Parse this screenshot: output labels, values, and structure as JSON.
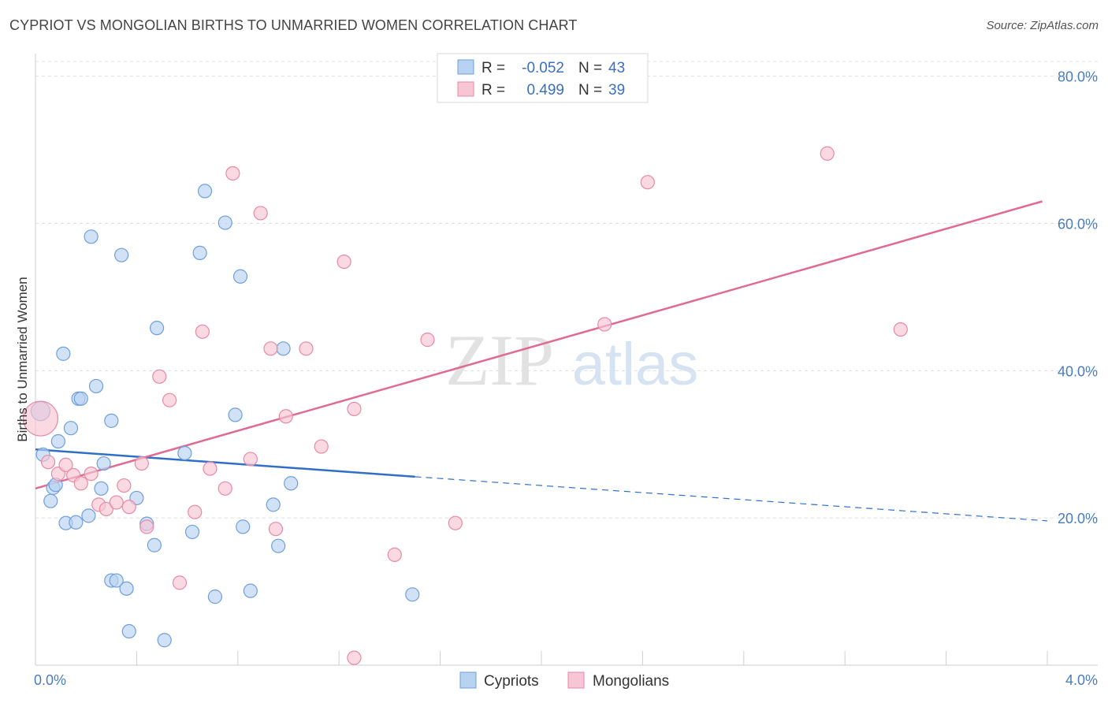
{
  "header": {
    "title": "CYPRIOT VS MONGOLIAN BIRTHS TO UNMARRIED WOMEN CORRELATION CHART",
    "source": "Source: ZipAtlas.com"
  },
  "watermark": {
    "zip": "ZIP",
    "atlas": "atlas"
  },
  "colors": {
    "cypriots_fill": "#b8d2f2",
    "cypriots_stroke": "#6f9fda",
    "cypriots_line": "#2f6fc8",
    "mongolians_fill": "#f7c5d4",
    "mongolians_stroke": "#e68aa6",
    "mongolians_line": "#e06a94"
  },
  "legend": {
    "rows": [
      {
        "r_label": "R =",
        "r_value": "-0.052",
        "n_label": "N =",
        "n_value": "43"
      },
      {
        "r_label": "R =",
        "r_value": "0.499",
        "n_label": "N =",
        "n_value": "39"
      }
    ]
  },
  "chart_data": {
    "type": "scatter",
    "title": "CYPRIOT VS MONGOLIAN BIRTHS TO UNMARRIED WOMEN CORRELATION CHART",
    "xlabel": "",
    "ylabel": "Births to Unmarried Women",
    "xlim": [
      0,
      4.0
    ],
    "ylim": [
      0,
      82
    ],
    "x_tick_labels": [
      "0.0%",
      "4.0%"
    ],
    "y_ticks": [
      20,
      40,
      60,
      80
    ],
    "y_tick_labels": [
      "20.0%",
      "40.0%",
      "60.0%",
      "80.0%"
    ],
    "grid": true,
    "legend_position": "top-center",
    "series": [
      {
        "name": "Cypriots",
        "r": -0.052,
        "n": 43,
        "trend": {
          "x": [
            0.0,
            1.5
          ],
          "y": [
            29.3,
            25.6
          ],
          "dashed_x": [
            1.5,
            4.0
          ],
          "dashed_y": [
            25.6,
            19.6
          ]
        },
        "points": [
          [
            0.02,
            34.5
          ],
          [
            0.03,
            28.6
          ],
          [
            0.07,
            24.1
          ],
          [
            0.08,
            24.5
          ],
          [
            0.06,
            22.3
          ],
          [
            0.09,
            30.4
          ],
          [
            0.11,
            42.3
          ],
          [
            0.14,
            32.2
          ],
          [
            0.17,
            36.2
          ],
          [
            0.18,
            36.2
          ],
          [
            0.22,
            58.2
          ],
          [
            0.24,
            37.9
          ],
          [
            0.26,
            24.0
          ],
          [
            0.27,
            27.4
          ],
          [
            0.3,
            33.2
          ],
          [
            0.34,
            55.7
          ],
          [
            0.12,
            19.3
          ],
          [
            0.16,
            19.4
          ],
          [
            0.21,
            20.3
          ],
          [
            0.3,
            11.5
          ],
          [
            0.32,
            11.5
          ],
          [
            0.36,
            10.4
          ],
          [
            0.37,
            4.6
          ],
          [
            0.4,
            22.7
          ],
          [
            0.44,
            19.2
          ],
          [
            0.47,
            16.3
          ],
          [
            0.48,
            45.8
          ],
          [
            0.51,
            3.4
          ],
          [
            0.59,
            28.8
          ],
          [
            0.62,
            18.1
          ],
          [
            0.65,
            56.0
          ],
          [
            0.67,
            64.4
          ],
          [
            0.71,
            9.3
          ],
          [
            0.75,
            60.1
          ],
          [
            0.79,
            34.0
          ],
          [
            0.81,
            52.8
          ],
          [
            0.82,
            18.8
          ],
          [
            0.85,
            10.1
          ],
          [
            0.94,
            21.8
          ],
          [
            0.96,
            16.2
          ],
          [
            0.98,
            43.0
          ],
          [
            1.01,
            24.7
          ],
          [
            1.49,
            9.6
          ]
        ]
      },
      {
        "name": "Mongolians",
        "r": 0.499,
        "n": 39,
        "trend": {
          "x": [
            0.0,
            3.98
          ],
          "y": [
            24.0,
            63.0
          ]
        },
        "points": [
          [
            0.02,
            33.5
          ],
          [
            0.05,
            27.6
          ],
          [
            0.09,
            26.0
          ],
          [
            0.12,
            27.2
          ],
          [
            0.15,
            25.8
          ],
          [
            0.18,
            24.7
          ],
          [
            0.22,
            26.0
          ],
          [
            0.25,
            21.8
          ],
          [
            0.28,
            21.2
          ],
          [
            0.32,
            22.1
          ],
          [
            0.35,
            24.4
          ],
          [
            0.37,
            21.5
          ],
          [
            0.42,
            27.4
          ],
          [
            0.44,
            18.8
          ],
          [
            0.49,
            39.2
          ],
          [
            0.53,
            36.0
          ],
          [
            0.57,
            11.2
          ],
          [
            0.63,
            20.8
          ],
          [
            0.66,
            45.3
          ],
          [
            0.69,
            26.7
          ],
          [
            0.75,
            24.0
          ],
          [
            0.78,
            66.8
          ],
          [
            0.85,
            28.0
          ],
          [
            0.89,
            61.4
          ],
          [
            0.93,
            43.0
          ],
          [
            0.95,
            18.5
          ],
          [
            0.99,
            33.8
          ],
          [
            1.07,
            43.0
          ],
          [
            1.13,
            29.7
          ],
          [
            1.22,
            54.8
          ],
          [
            1.26,
            34.8
          ],
          [
            1.26,
            1.0
          ],
          [
            1.42,
            15.0
          ],
          [
            1.55,
            44.2
          ],
          [
            1.66,
            19.3
          ],
          [
            2.25,
            46.3
          ],
          [
            2.42,
            65.6
          ],
          [
            3.13,
            69.5
          ],
          [
            3.42,
            45.6
          ]
        ]
      }
    ]
  }
}
